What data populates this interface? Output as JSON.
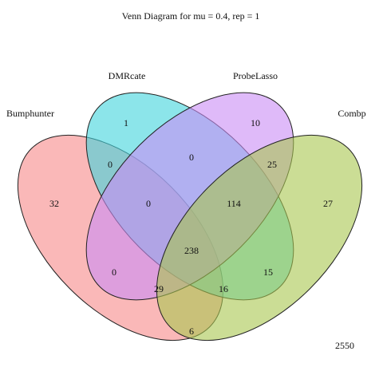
{
  "title": "Venn Diagram for mu = 0.4, rep = 1",
  "sets": [
    {
      "name": "Bumphunter",
      "color": "#f89a9a"
    },
    {
      "name": "DMRcate",
      "color": "#3fd3dc"
    },
    {
      "name": "ProbeLasso",
      "color": "#c98cf5"
    },
    {
      "name": "Combp",
      "color": "#a8c74e"
    }
  ],
  "regions": [
    {
      "id": "b",
      "value": "32"
    },
    {
      "id": "d",
      "value": "1"
    },
    {
      "id": "p",
      "value": "10"
    },
    {
      "id": "c",
      "value": "27"
    },
    {
      "id": "bd",
      "value": "0"
    },
    {
      "id": "dp",
      "value": "0"
    },
    {
      "id": "pc",
      "value": "25"
    },
    {
      "id": "bdp",
      "value": "0"
    },
    {
      "id": "dpc",
      "value": "114"
    },
    {
      "id": "bdpc",
      "value": "238"
    },
    {
      "id": "bp",
      "value": "0"
    },
    {
      "id": "dc",
      "value": "15"
    },
    {
      "id": "bpc",
      "value": "29"
    },
    {
      "id": "bdc",
      "value": "16"
    },
    {
      "id": "bc",
      "value": "6"
    },
    {
      "id": "none",
      "value": "2550"
    }
  ]
}
